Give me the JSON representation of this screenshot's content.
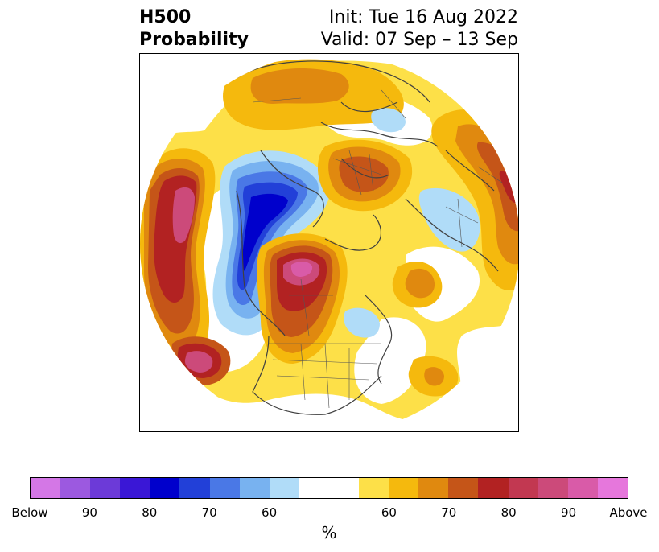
{
  "header": {
    "left_line1": "H500",
    "left_line2": "Probability",
    "right_line1": "Init: Tue 16 Aug 2022",
    "right_line2": "Valid: 07 Sep – 13 Sep"
  },
  "colorbar": {
    "colors": [
      "#d477e6",
      "#9c59e0",
      "#6c3ad8",
      "#3a17d6",
      "#0000cc",
      "#2240d8",
      "#4a78e6",
      "#78b2f0",
      "#b0dcf8",
      "#ffffff",
      "#ffffff",
      "#fde048",
      "#f5b90d",
      "#e0890f",
      "#c55518",
      "#b22222",
      "#c23851",
      "#cc4a7a",
      "#d95ba8",
      "#e677dc"
    ],
    "tick_labels": [
      "Below",
      "90",
      "80",
      "70",
      "60",
      "60",
      "70",
      "80",
      "90",
      "Above"
    ],
    "unit": "%"
  },
  "map": {
    "projection": "north-polar-stereographic",
    "palette": {
      "yellow": "#fde048",
      "gold": "#f5b90d",
      "orange": "#e0890f",
      "darkorange": "#c55518",
      "red": "#b22222",
      "crimson": "#c23851",
      "rose": "#cc4a7a",
      "pink": "#d95ba8",
      "lightblue": "#b0dcf8",
      "skyblue": "#78b2f0",
      "blue": "#4a78e6",
      "royal": "#2240d8",
      "navy": "#0000cc"
    }
  }
}
